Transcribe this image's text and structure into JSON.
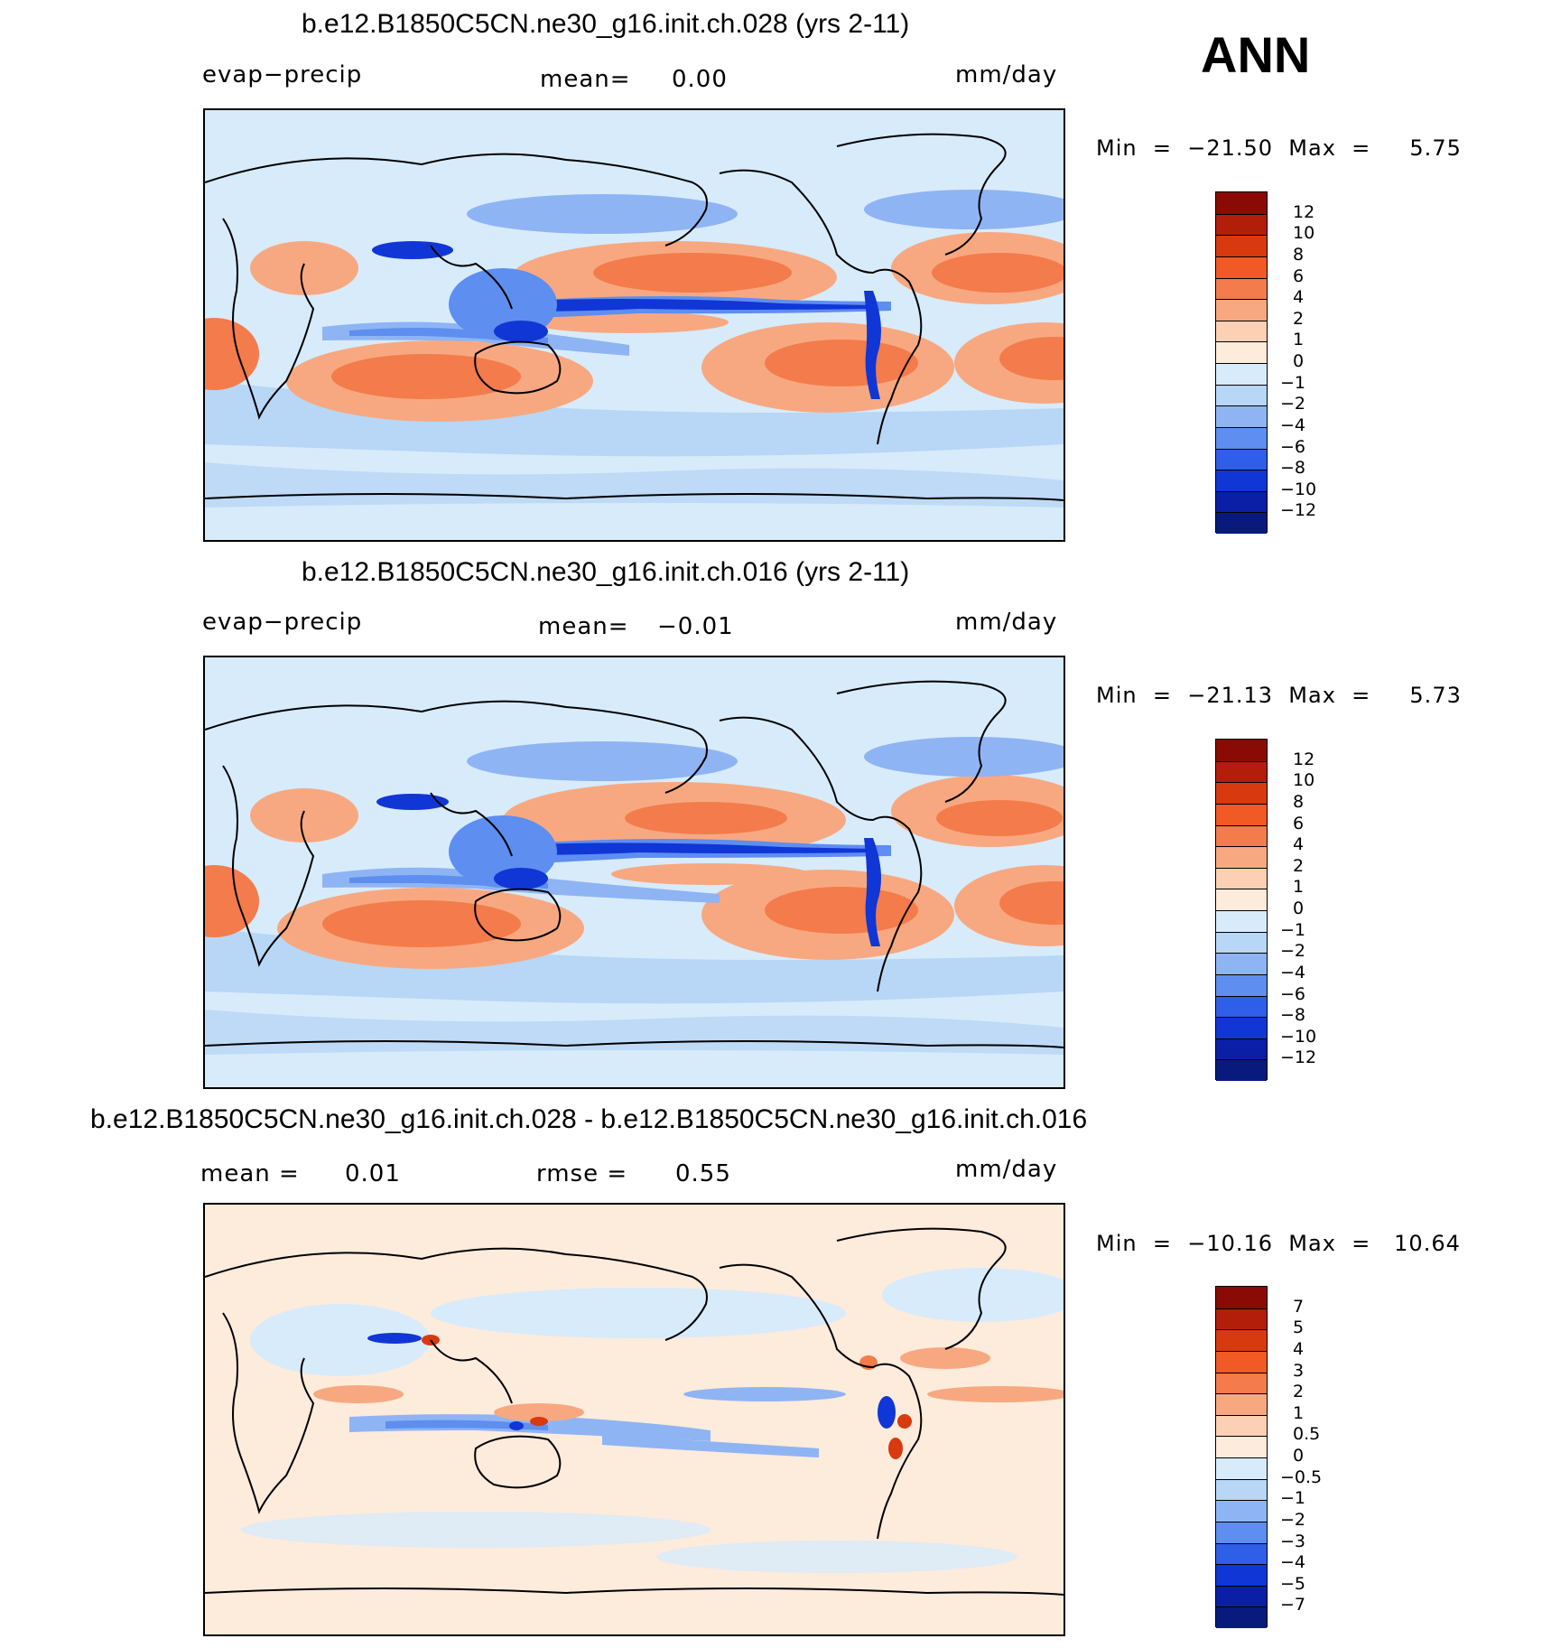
{
  "season": "ANN",
  "panels": [
    {
      "title": "b.e12.B1850C5CN.ne30_g16.init.ch.028 (yrs 2-11)",
      "left_label": "evap−precip",
      "center_label": "mean=",
      "center_value": "0.00",
      "right_label": "",
      "units": "mm/day",
      "minmax": "Min  =  −21.50  Max  =     5.75",
      "levels": [
        "12",
        "10",
        "8",
        "6",
        "4",
        "2",
        "1",
        "0",
        "−1",
        "−2",
        "−4",
        "−6",
        "−8",
        "−10",
        "−12"
      ]
    },
    {
      "title": "b.e12.B1850C5CN.ne30_g16.init.ch.016 (yrs 2-11)",
      "left_label": "evap−precip",
      "center_label": "mean=",
      "center_value": "−0.01",
      "right_label": "",
      "units": "mm/day",
      "minmax": "Min  =  −21.13  Max  =     5.73",
      "levels": [
        "12",
        "10",
        "8",
        "6",
        "4",
        "2",
        "1",
        "0",
        "−1",
        "−2",
        "−4",
        "−6",
        "−8",
        "−10",
        "−12"
      ]
    },
    {
      "title": "b.e12.B1850C5CN.ne30_g16.init.ch.028 - b.e12.B1850C5CN.ne30_g16.init.ch.016",
      "left_label": "mean  =",
      "center_label": "rmse  =",
      "center_value": "0.55",
      "left_value": "0.01",
      "units": "mm/day",
      "minmax": "Min  =  −10.16  Max  =   10.64",
      "levels": [
        "7",
        "5",
        "4",
        "3",
        "2",
        "1",
        "0.5",
        "0",
        "−0.5",
        "−1",
        "−2",
        "−3",
        "−4",
        "−5",
        "−7"
      ]
    }
  ],
  "colorbar_colors": [
    "#8a0a06",
    "#b31e0a",
    "#d8390e",
    "#f15a24",
    "#f47b4b",
    "#f8a880",
    "#fcd0b4",
    "#fdebdc",
    "#d7ebfb",
    "#b8d6f6",
    "#8fb4f4",
    "#5d8ef0",
    "#2f5fe8",
    "#1036d6",
    "#0a1fa6",
    "#081a7c"
  ]
}
